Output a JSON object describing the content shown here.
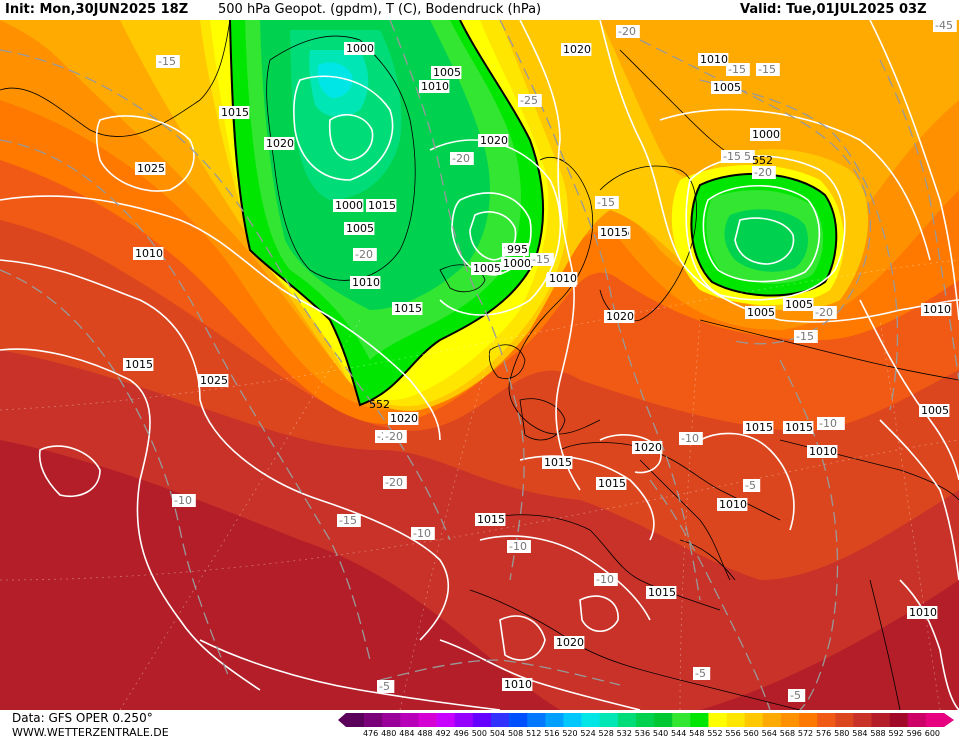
{
  "header": {
    "init": "Init: Mon,30JUN2025 18Z",
    "title": "500 hPa Geopot. (gpdm), T (C), Bodendruck (hPa)",
    "valid": "Valid: Tue,01JUL2025 03Z"
  },
  "footer": {
    "source": "Data: GFS OPER 0.250°",
    "site": "WWW.WETTERZENTRALE.DE"
  },
  "legend": {
    "levels": [
      "476",
      "480",
      "484",
      "488",
      "492",
      "496",
      "500",
      "504",
      "508",
      "512",
      "516",
      "520",
      "524",
      "528",
      "532",
      "536",
      "540",
      "544",
      "548",
      "552",
      "556",
      "560",
      "564",
      "568",
      "572",
      "576",
      "580",
      "584",
      "588",
      "592",
      "596",
      "600"
    ],
    "colors": [
      "#5a005a",
      "#7a007a",
      "#9a009a",
      "#b800b8",
      "#d400d4",
      "#c800ff",
      "#9600ff",
      "#6400ff",
      "#3232ff",
      "#0050ff",
      "#0078ff",
      "#00a0ff",
      "#00c8ff",
      "#00e6e6",
      "#00e6b4",
      "#00dc78",
      "#00d250",
      "#00c832",
      "#32e632",
      "#00e600",
      "#ffff00",
      "#ffe600",
      "#ffc800",
      "#ffaa00",
      "#ff9100",
      "#ff7800",
      "#f05a14",
      "#dc461e",
      "#c83228",
      "#b41e28",
      "#a00a28",
      "#cc0066",
      "#e60080"
    ]
  },
  "pressure_labels": [
    "1000",
    "1005",
    "1010",
    "1015",
    "1020",
    "1025",
    "995",
    "1000",
    "1005",
    "1010",
    "1015",
    "1020",
    "1025",
    "1010",
    "1015",
    "1020",
    "1005",
    "1010",
    "1015",
    "1000",
    "1005",
    "1010",
    "1015",
    "1020",
    "995",
    "1000",
    "1005",
    "1010",
    "1015",
    "1020",
    "1010",
    "1015",
    "1010",
    "1015",
    "1020",
    "1025",
    "1015",
    "1010",
    "1005",
    "1010",
    "1015",
    "1020",
    "1015",
    "1010",
    "1015",
    "1010",
    "1005",
    "1010",
    "1000",
    "1005"
  ],
  "temperature_labels": [
    "-15",
    "-20",
    "-25",
    "-20",
    "-15",
    "-10",
    "-5",
    "-15",
    "-20",
    "-25",
    "-15",
    "-20",
    "-15",
    "-10",
    "-15",
    "-20",
    "-10",
    "-5",
    "-10",
    "-15",
    "-20",
    "-10",
    "-10",
    "-5",
    "-5",
    "-5",
    "-10",
    "-45",
    "-15",
    "-15",
    "-20",
    "-10"
  ],
  "geopotential_labels": [
    "552",
    "552"
  ]
}
